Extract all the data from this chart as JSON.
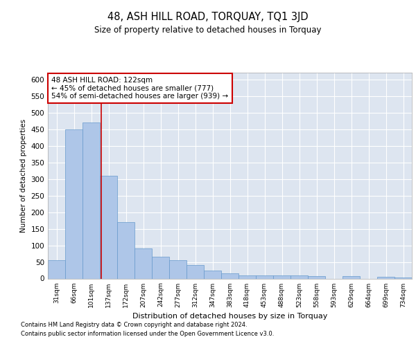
{
  "title": "48, ASH HILL ROAD, TORQUAY, TQ1 3JD",
  "subtitle": "Size of property relative to detached houses in Torquay",
  "xlabel": "Distribution of detached houses by size in Torquay",
  "ylabel": "Number of detached properties",
  "footnote1": "Contains HM Land Registry data © Crown copyright and database right 2024.",
  "footnote2": "Contains public sector information licensed under the Open Government Licence v3.0.",
  "annotation_line1": "48 ASH HILL ROAD: 122sqm",
  "annotation_line2": "← 45% of detached houses are smaller (777)",
  "annotation_line3": "54% of semi-detached houses are larger (939) →",
  "bar_color": "#aec6e8",
  "bar_edge_color": "#6699cc",
  "ref_line_color": "#cc0000",
  "background_color": "#dde5f0",
  "categories": [
    "31sqm",
    "66sqm",
    "101sqm",
    "137sqm",
    "172sqm",
    "207sqm",
    "242sqm",
    "277sqm",
    "312sqm",
    "347sqm",
    "383sqm",
    "418sqm",
    "453sqm",
    "488sqm",
    "523sqm",
    "558sqm",
    "593sqm",
    "629sqm",
    "664sqm",
    "699sqm",
    "734sqm"
  ],
  "values": [
    55,
    450,
    470,
    310,
    170,
    90,
    65,
    55,
    40,
    25,
    15,
    10,
    10,
    10,
    10,
    8,
    0,
    8,
    0,
    5,
    3
  ],
  "ylim": [
    0,
    620
  ],
  "yticks": [
    0,
    50,
    100,
    150,
    200,
    250,
    300,
    350,
    400,
    450,
    500,
    550,
    600
  ]
}
